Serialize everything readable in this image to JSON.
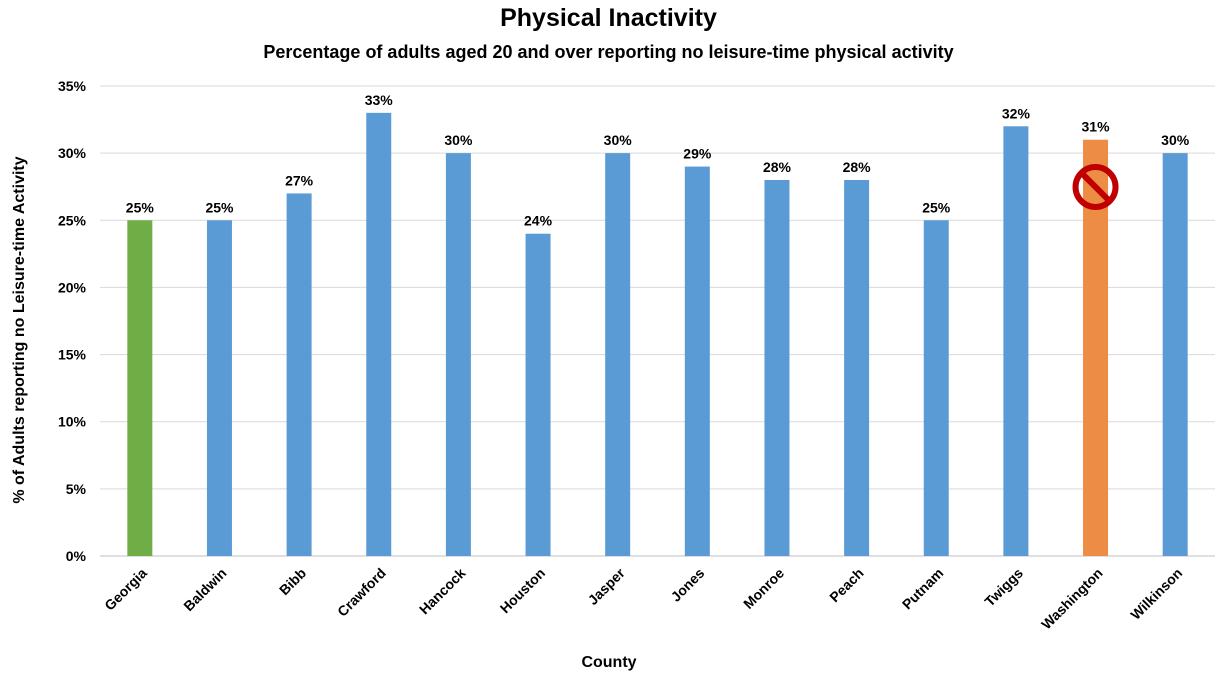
{
  "colors": {
    "default_bar": "#5B9BD5",
    "georgia_bar": "#70AD47",
    "washington_bar": "#ED8D45",
    "gridline": "#D9D9D9",
    "no_symbol": "#C00000"
  },
  "icons": {
    "washington_marker": "no-symbol-icon"
  },
  "chart_data": {
    "type": "bar",
    "title": "Physical Inactivity",
    "subtitle": "Percentage of adults aged 20 and over reporting no leisure-time physical activity",
    "xlabel": "County",
    "ylabel": "% of Adults reporting no Leisure-time Activity",
    "ylim": [
      0,
      35
    ],
    "y_ticks": [
      "0%",
      "5%",
      "10%",
      "15%",
      "20%",
      "25%",
      "30%",
      "35%"
    ],
    "categories": [
      "Georgia",
      "Baldwin",
      "Bibb",
      "Crawford",
      "Hancock",
      "Houston",
      "Jasper",
      "Jones",
      "Monroe",
      "Peach",
      "Putnam",
      "Twiggs",
      "Washington",
      "Wilkinson"
    ],
    "values": [
      25,
      25,
      27,
      33,
      30,
      24,
      30,
      29,
      28,
      28,
      25,
      32,
      31,
      30
    ],
    "data_labels": [
      "25%",
      "25%",
      "27%",
      "33%",
      "30%",
      "24%",
      "30%",
      "29%",
      "28%",
      "28%",
      "25%",
      "32%",
      "31%",
      "30%"
    ],
    "bar_colors": [
      "#70AD47",
      "#5B9BD5",
      "#5B9BD5",
      "#5B9BD5",
      "#5B9BD5",
      "#5B9BD5",
      "#5B9BD5",
      "#5B9BD5",
      "#5B9BD5",
      "#5B9BD5",
      "#5B9BD5",
      "#5B9BD5",
      "#ED8D45",
      "#5B9BD5"
    ],
    "grid": true,
    "legend": "none"
  }
}
